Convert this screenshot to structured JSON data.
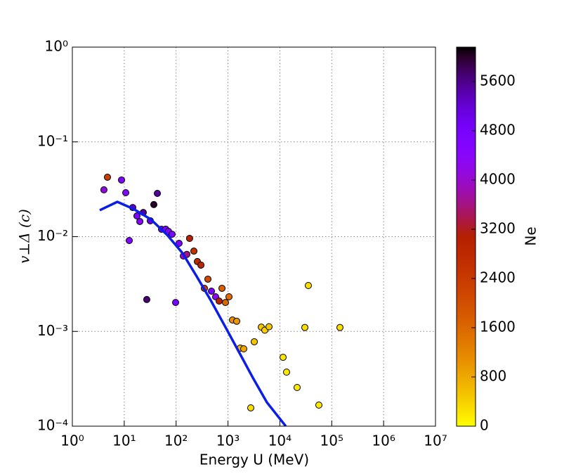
{
  "chart_data": {
    "type": "scatter",
    "xlabel": "Energy U (MeV)",
    "ylabel": "v⊥Δ (c)",
    "xscale": "log",
    "yscale": "log",
    "grid": true,
    "xlim": [
      1,
      10000000
    ],
    "ylim": [
      0.0001,
      1
    ],
    "xticks": [
      {
        "value": 1,
        "label": "10⁰"
      },
      {
        "value": 10,
        "label": "10¹"
      },
      {
        "value": 100,
        "label": "10²"
      },
      {
        "value": 1000,
        "label": "10³"
      },
      {
        "value": 10000,
        "label": "10⁴"
      },
      {
        "value": 100000,
        "label": "10⁵"
      },
      {
        "value": 1000000,
        "label": "10⁶"
      },
      {
        "value": 10000000,
        "label": "10⁷"
      }
    ],
    "yticks": [
      {
        "value": 0.0001,
        "label": "10⁻⁴"
      },
      {
        "value": 0.001,
        "label": "10⁻³"
      },
      {
        "value": 0.01,
        "label": "10⁻²"
      },
      {
        "value": 0.1,
        "label": "10⁻¹"
      },
      {
        "value": 1,
        "label": "10⁰"
      }
    ],
    "colormap": "gnuplot_r",
    "clim": [
      0,
      6160
    ],
    "cticks": [
      0,
      800,
      1600,
      2400,
      3200,
      4000,
      4800,
      5600
    ],
    "clabel": "Ne",
    "series": [
      {
        "type": "scatter",
        "x": [
          4.06,
          4.75,
          8.87,
          10.7,
          14.6,
          12.5,
          17.6,
          20.0,
          23.3,
          31.8,
          37.2,
          43.5,
          27.2,
          52.4,
          63.1,
          71.6,
          83.6,
          97.8,
          114,
          138,
          161,
          182,
          220,
          257,
          301,
          351,
          410,
          480,
          578,
          676,
          766,
          895,
          1046,
          1222,
          1473,
          1722,
          2013,
          2749,
          3213,
          4387,
          5129,
          6180,
          11530,
          13460,
          21500,
          30300,
          35400,
          56500,
          144000
        ],
        "values": [
          0.0312,
          0.0424,
          0.0396,
          0.0291,
          0.0203,
          0.0091,
          0.01655,
          0.01445,
          0.018,
          0.0147,
          0.0218,
          0.0286,
          0.00217,
          0.01197,
          0.012,
          0.01137,
          0.0106,
          0.00202,
          0.0085,
          0.00625,
          0.0065,
          0.00958,
          0.00704,
          0.00546,
          0.00501,
          0.00285,
          0.00356,
          0.00266,
          0.00232,
          0.00209,
          0.00285,
          0.00202,
          0.00232,
          0.00132,
          0.00128,
          0.000667,
          0.000655,
          0.000156,
          0.000778,
          0.00111,
          0.00103,
          0.00112,
          0.000533,
          0.000372,
          0.000256,
          0.0011,
          0.00305,
          0.000167,
          0.0011
        ],
        "c": [
          4100,
          2300,
          4600,
          4500,
          5300,
          4600,
          4700,
          4500,
          5500,
          5000,
          6000,
          5500,
          5700,
          4900,
          4700,
          4500,
          4700,
          4800,
          4800,
          4000,
          3600,
          3000,
          2600,
          2800,
          2900,
          2300,
          2100,
          4700,
          4300,
          3000,
          1700,
          1600,
          1500,
          1100,
          1000,
          600,
          800,
          300,
          500,
          500,
          400,
          500,
          200,
          200,
          200,
          300,
          300,
          200,
          300
        ]
      },
      {
        "type": "line",
        "color": "#0a1ee8",
        "x": [
          3.37,
          7.36,
          15.1,
          32.7,
          67.0,
          133,
          249,
          465,
          863,
          1613,
          3013,
          5600,
          13000
        ],
        "values": [
          0.019,
          0.0233,
          0.0196,
          0.0152,
          0.01045,
          0.0067,
          0.00381,
          0.00213,
          0.00115,
          0.000612,
          0.000325,
          0.000179,
          0.0001
        ]
      }
    ]
  }
}
